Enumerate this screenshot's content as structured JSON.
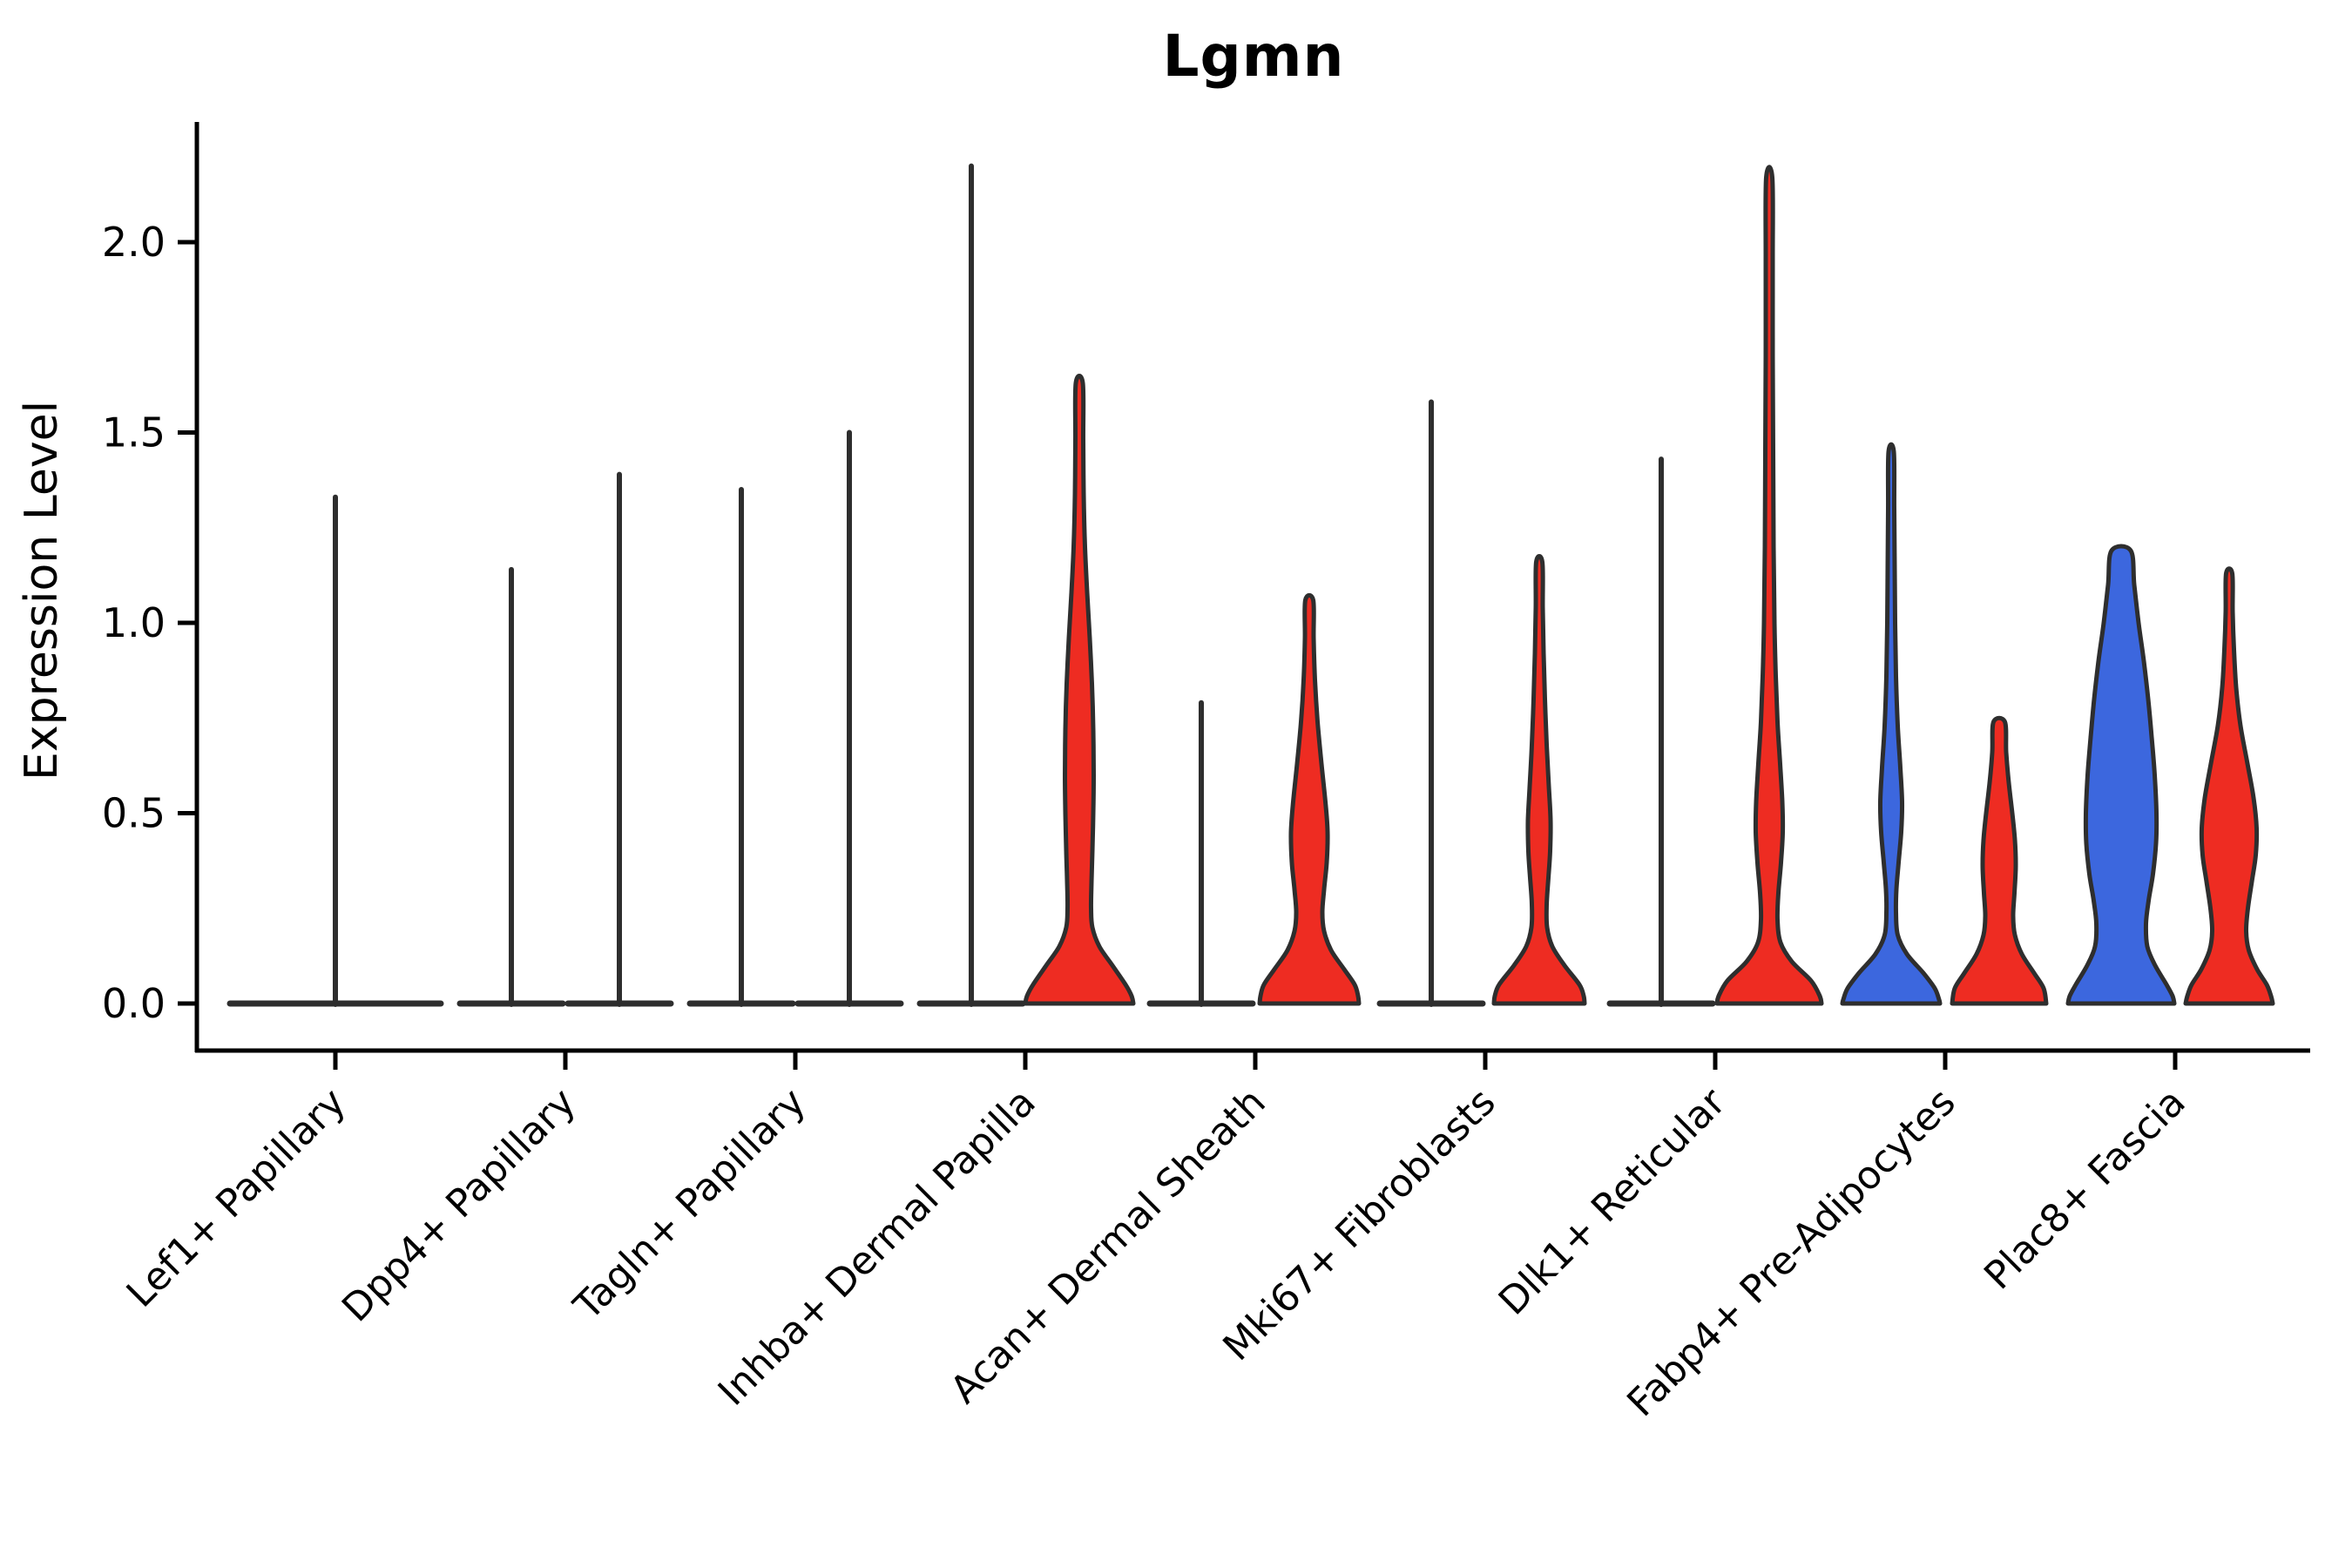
{
  "chart_data": {
    "type": "violin",
    "title": "Lgmn",
    "xlabel": "",
    "ylabel": "Expression Level",
    "ylim": [
      -0.13,
      2.31
    ],
    "yticks": [
      "0.0",
      "0.5",
      "1.0",
      "1.5",
      "2.0"
    ],
    "grid": false,
    "legend": "none",
    "categories": [
      "Lef1+ Papillary",
      "Dpp4+ Papillary",
      "Tagln+ Papillary",
      "Inhba+ Dermal Papilla",
      "Acan+ Dermal Sheath",
      "Mki67+ Fibroblasts",
      "Dlk1+ Reticular",
      "Fabp4+ Pre-Adipocytes",
      "Plac8+ Fascia"
    ],
    "group_colors": {
      "left": "#3C67DE",
      "right": "#EE2C22"
    },
    "outline_color": "#2E2E2E",
    "violins": [
      {
        "category_index": 0,
        "category": "Lef1+ Papillary",
        "position": "center",
        "style": "collapsed",
        "max_expression": 1.33,
        "baseline_width": 242
      },
      {
        "category_index": 1,
        "category": "Dpp4+ Papillary",
        "position": "left",
        "style": "collapsed",
        "max_expression": 1.14,
        "baseline_width": 118
      },
      {
        "category_index": 1,
        "category": "Dpp4+ Papillary",
        "position": "right",
        "style": "collapsed",
        "max_expression": 1.39,
        "baseline_width": 118
      },
      {
        "category_index": 2,
        "category": "Tagln+ Papillary",
        "position": "left",
        "style": "collapsed",
        "max_expression": 1.35,
        "baseline_width": 118
      },
      {
        "category_index": 2,
        "category": "Tagln+ Papillary",
        "position": "right",
        "style": "collapsed",
        "max_expression": 1.5,
        "baseline_width": 118
      },
      {
        "category_index": 3,
        "category": "Inhba+ Dermal Papilla",
        "position": "left",
        "style": "collapsed",
        "max_expression": 2.2,
        "baseline_width": 118
      },
      {
        "category_index": 3,
        "category": "Inhba+ Dermal Papilla",
        "position": "right",
        "style": "body",
        "fill": "right",
        "max_expression": 1.63,
        "profile": [
          [
            1.63,
            8
          ],
          [
            1.48,
            9
          ],
          [
            1.34,
            10
          ],
          [
            1.2,
            13
          ],
          [
            1.08,
            18
          ],
          [
            0.96,
            24
          ],
          [
            0.84,
            29
          ],
          [
            0.72,
            32
          ],
          [
            0.6,
            33
          ],
          [
            0.5,
            32
          ],
          [
            0.4,
            30
          ],
          [
            0.32,
            28
          ],
          [
            0.25,
            27
          ],
          [
            0.2,
            30
          ],
          [
            0.15,
            46
          ],
          [
            0.1,
            76
          ],
          [
            0.05,
            106
          ],
          [
            0.02,
            120
          ],
          [
            0.0,
            124
          ]
        ]
      },
      {
        "category_index": 4,
        "category": "Acan+ Dermal Sheath",
        "position": "left",
        "style": "collapsed",
        "max_expression": 0.79,
        "baseline_width": 118
      },
      {
        "category_index": 4,
        "category": "Acan+ Dermal Sheath",
        "position": "right",
        "style": "body",
        "fill": "right",
        "max_expression": 1.06,
        "profile": [
          [
            1.06,
            9
          ],
          [
            0.96,
            10
          ],
          [
            0.85,
            13
          ],
          [
            0.74,
            19
          ],
          [
            0.63,
            28
          ],
          [
            0.53,
            37
          ],
          [
            0.45,
            42
          ],
          [
            0.37,
            40
          ],
          [
            0.3,
            34
          ],
          [
            0.24,
            30
          ],
          [
            0.19,
            34
          ],
          [
            0.14,
            50
          ],
          [
            0.09,
            80
          ],
          [
            0.05,
            104
          ],
          [
            0.02,
            112
          ],
          [
            0.0,
            114
          ]
        ]
      },
      {
        "category_index": 5,
        "category": "Mki67+ Fibroblasts",
        "position": "left",
        "style": "collapsed",
        "max_expression": 1.58,
        "baseline_width": 118
      },
      {
        "category_index": 5,
        "category": "Mki67+ Fibroblasts",
        "position": "right",
        "style": "body",
        "fill": "right",
        "max_expression": 1.16,
        "profile": [
          [
            1.16,
            7
          ],
          [
            1.04,
            8
          ],
          [
            0.92,
            10
          ],
          [
            0.8,
            13
          ],
          [
            0.68,
            17
          ],
          [
            0.57,
            22
          ],
          [
            0.48,
            26
          ],
          [
            0.4,
            25
          ],
          [
            0.33,
            21
          ],
          [
            0.26,
            17
          ],
          [
            0.2,
            18
          ],
          [
            0.15,
            30
          ],
          [
            0.1,
            58
          ],
          [
            0.05,
            92
          ],
          [
            0.02,
            102
          ],
          [
            0.0,
            104
          ]
        ]
      },
      {
        "category_index": 6,
        "category": "Dlk1+ Reticular",
        "position": "left",
        "style": "collapsed",
        "max_expression": 1.43,
        "baseline_width": 118
      },
      {
        "category_index": 6,
        "category": "Dlk1+ Reticular",
        "position": "right",
        "style": "body",
        "fill": "right",
        "max_expression": 2.17,
        "profile": [
          [
            2.17,
            7
          ],
          [
            1.95,
            8
          ],
          [
            1.7,
            8
          ],
          [
            1.45,
            9
          ],
          [
            1.2,
            10
          ],
          [
            1.0,
            12
          ],
          [
            0.86,
            15
          ],
          [
            0.74,
            19
          ],
          [
            0.63,
            25
          ],
          [
            0.53,
            30
          ],
          [
            0.45,
            31
          ],
          [
            0.37,
            27
          ],
          [
            0.29,
            21
          ],
          [
            0.22,
            19
          ],
          [
            0.16,
            26
          ],
          [
            0.11,
            52
          ],
          [
            0.06,
            96
          ],
          [
            0.02,
            116
          ],
          [
            0.0,
            120
          ]
        ]
      },
      {
        "category_index": 7,
        "category": "Fabp4+ Pre-Adipocytes",
        "position": "left",
        "style": "body",
        "fill": "left",
        "max_expression": 1.45,
        "profile": [
          [
            1.45,
            6
          ],
          [
            1.3,
            7
          ],
          [
            1.15,
            8
          ],
          [
            1.0,
            9
          ],
          [
            0.86,
            11
          ],
          [
            0.73,
            15
          ],
          [
            0.62,
            21
          ],
          [
            0.53,
            25
          ],
          [
            0.45,
            23
          ],
          [
            0.37,
            17
          ],
          [
            0.3,
            12
          ],
          [
            0.24,
            11
          ],
          [
            0.18,
            15
          ],
          [
            0.13,
            36
          ],
          [
            0.08,
            74
          ],
          [
            0.04,
            100
          ],
          [
            0.01,
            110
          ],
          [
            0.0,
            112
          ]
        ]
      },
      {
        "category_index": 7,
        "category": "Fabp4+ Pre-Adipocytes",
        "position": "right",
        "style": "body",
        "fill": "right",
        "max_expression": 0.74,
        "profile": [
          [
            0.74,
            13
          ],
          [
            0.66,
            16
          ],
          [
            0.58,
            22
          ],
          [
            0.5,
            30
          ],
          [
            0.43,
            36
          ],
          [
            0.36,
            38
          ],
          [
            0.29,
            35
          ],
          [
            0.23,
            32
          ],
          [
            0.18,
            36
          ],
          [
            0.13,
            52
          ],
          [
            0.08,
            80
          ],
          [
            0.04,
            102
          ],
          [
            0.0,
            108
          ]
        ]
      },
      {
        "category_index": 8,
        "category": "Plac8+ Fascia",
        "position": "left",
        "style": "body",
        "fill": "left",
        "max_expression": 1.19,
        "profile": [
          [
            1.19,
            22
          ],
          [
            1.1,
            30
          ],
          [
            1.0,
            40
          ],
          [
            0.9,
            52
          ],
          [
            0.8,
            62
          ],
          [
            0.7,
            70
          ],
          [
            0.6,
            77
          ],
          [
            0.5,
            81
          ],
          [
            0.42,
            80
          ],
          [
            0.34,
            73
          ],
          [
            0.27,
            63
          ],
          [
            0.21,
            57
          ],
          [
            0.15,
            60
          ],
          [
            0.1,
            78
          ],
          [
            0.05,
            104
          ],
          [
            0.02,
            118
          ],
          [
            0.0,
            122
          ]
        ]
      },
      {
        "category_index": 8,
        "category": "Plac8+ Fascia",
        "position": "right",
        "style": "body",
        "fill": "right",
        "max_expression": 1.13,
        "profile": [
          [
            1.13,
            7
          ],
          [
            1.03,
            8
          ],
          [
            0.93,
            11
          ],
          [
            0.83,
            16
          ],
          [
            0.73,
            26
          ],
          [
            0.63,
            42
          ],
          [
            0.54,
            56
          ],
          [
            0.46,
            63
          ],
          [
            0.39,
            61
          ],
          [
            0.32,
            52
          ],
          [
            0.25,
            43
          ],
          [
            0.19,
            39
          ],
          [
            0.14,
            45
          ],
          [
            0.09,
            64
          ],
          [
            0.05,
            86
          ],
          [
            0.02,
            96
          ],
          [
            0.0,
            100
          ]
        ]
      }
    ]
  }
}
